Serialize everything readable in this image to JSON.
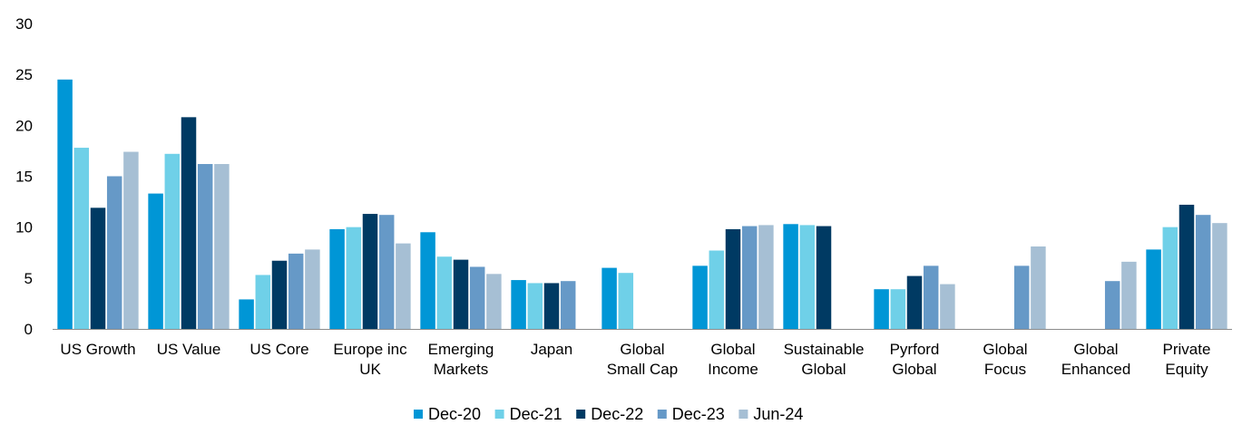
{
  "chart_data": {
    "type": "bar",
    "title": "",
    "xlabel": "",
    "ylabel": "",
    "ylim": [
      0,
      30
    ],
    "yticks": [
      "0",
      "5",
      "10",
      "15",
      "20",
      "25",
      "30"
    ],
    "grid": false,
    "legend_position": "bottom",
    "categories": [
      [
        "US Growth"
      ],
      [
        "US Value"
      ],
      [
        "US Core"
      ],
      [
        "Europe inc",
        "UK"
      ],
      [
        "Emerging",
        "Markets"
      ],
      [
        "Japan"
      ],
      [
        "Global",
        "Small Cap"
      ],
      [
        "Global",
        "Income"
      ],
      [
        "Sustainable",
        "Global"
      ],
      [
        "Pyrford",
        "Global"
      ],
      [
        "Global",
        "Focus"
      ],
      [
        "Global",
        "Enhanced"
      ],
      [
        "Private",
        "Equity"
      ]
    ],
    "series": [
      {
        "name": "Dec-20",
        "color": "#0096D6",
        "values": [
          24.5,
          13.3,
          2.9,
          9.8,
          9.5,
          4.8,
          6.0,
          6.2,
          10.3,
          3.9,
          null,
          null,
          7.8
        ]
      },
      {
        "name": "Dec-21",
        "color": "#6FD0E8",
        "values": [
          17.8,
          17.2,
          5.3,
          10.0,
          7.1,
          4.5,
          5.5,
          7.7,
          10.2,
          3.9,
          null,
          null,
          10.0
        ]
      },
      {
        "name": "Dec-22",
        "color": "#003A63",
        "values": [
          11.9,
          20.8,
          6.7,
          11.3,
          6.8,
          4.5,
          null,
          9.8,
          10.1,
          5.2,
          null,
          null,
          12.2
        ]
      },
      {
        "name": "Dec-23",
        "color": "#6699C7",
        "values": [
          15.0,
          16.2,
          7.4,
          11.2,
          6.1,
          4.7,
          null,
          10.1,
          null,
          6.2,
          6.2,
          4.7,
          11.2
        ]
      },
      {
        "name": "Jun-24",
        "color": "#A6BFD4",
        "values": [
          17.4,
          16.2,
          7.8,
          8.4,
          5.4,
          null,
          null,
          10.2,
          null,
          4.4,
          8.1,
          6.6,
          10.4
        ]
      }
    ]
  }
}
